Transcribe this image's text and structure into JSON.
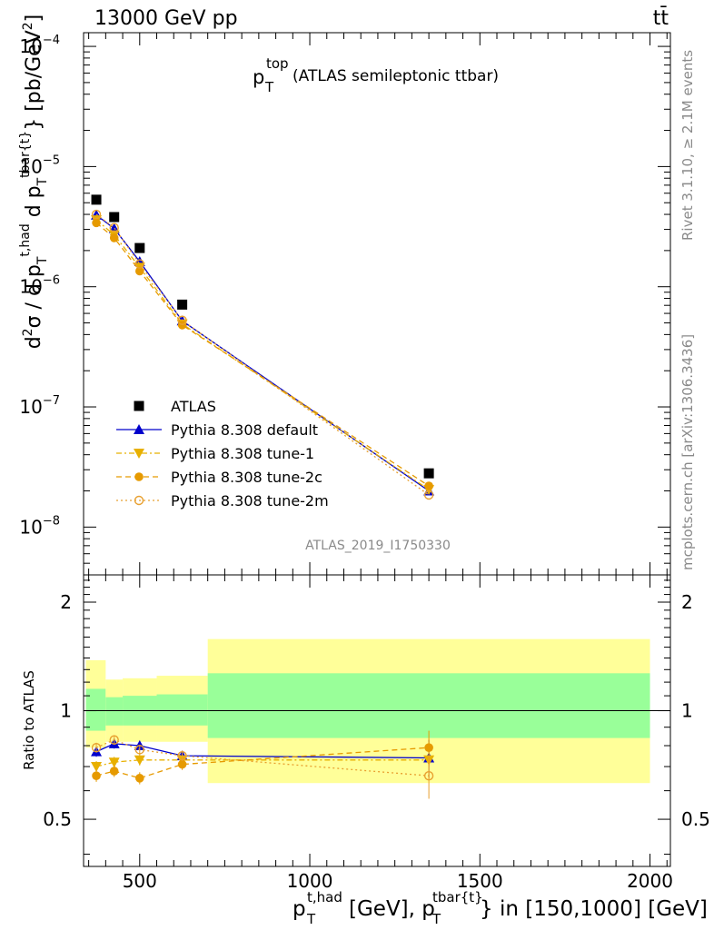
{
  "header": {
    "energy_label": "13000 GeV pp",
    "process_label": "tt̄"
  },
  "main_panel": {
    "title_prefix": "p",
    "title_sup": "top",
    "title_sub": "T",
    "title_rest": "(ATLAS semileptonic ttbar)",
    "ylabel": "d²σ / d p_T^{t,had} d p_T^{tbar{t}} [pb/GeV²]",
    "watermark": "ATLAS_2019_I1750330",
    "yticks": [
      {
        "base": "10",
        "exp": "−4"
      },
      {
        "base": "10",
        "exp": "−5"
      },
      {
        "base": "10",
        "exp": "−6"
      },
      {
        "base": "10",
        "exp": "−7"
      },
      {
        "base": "10",
        "exp": "−8"
      }
    ]
  },
  "ratio_panel": {
    "ylabel": "Ratio to ATLAS",
    "yticks": [
      "0.5",
      "1",
      "2"
    ]
  },
  "xaxis": {
    "ticks": [
      "500",
      "1000",
      "1500",
      "2000"
    ],
    "label": "p_T^{t,had} [GeV], p_T^{tbar{t}} in [150,1000] [GeV]"
  },
  "side_labels": {
    "rivet": "Rivet 3.1.10, ≥ 2.1M events",
    "mcplots": "mcplots.cern.ch [arXiv:1306.3436]"
  },
  "chart_data": {
    "type": "scatter",
    "x_range": [
      335,
      2060
    ],
    "y_range_main": [
      4e-09,
      0.00013
    ],
    "y_scale_main": "log",
    "y_range_ratio": [
      0.37,
      2.38
    ],
    "y_scale_ratio": "log",
    "legend_placement": "bottom-left",
    "x": [
      372.5,
      425,
      500,
      625,
      1350
    ],
    "series": [
      {
        "name": "ATLAS",
        "color": "#000000",
        "marker": "square",
        "style": "none",
        "values": [
          5.3e-06,
          3.8e-06,
          2.1e-06,
          7.1e-07,
          2.8e-08
        ],
        "ratio": [
          1,
          1,
          1,
          1,
          1
        ]
      },
      {
        "name": "Pythia 8.308 default",
        "color": "#0000cc",
        "marker": "triangle-up",
        "style": "solid",
        "values": [
          3.95e-06,
          3.05e-06,
          1.62e-06,
          5.2e-07,
          2e-08
        ],
        "ratio": [
          0.77,
          0.81,
          0.8,
          0.75,
          0.74
        ]
      },
      {
        "name": "Pythia 8.308 tune-1",
        "color": "#e8b000",
        "marker": "triangle-down",
        "style": "dashdot",
        "values": [
          3.6e-06,
          2.7e-06,
          1.45e-06,
          4.9e-07,
          2.05e-08
        ],
        "ratio": [
          0.7,
          0.72,
          0.73,
          0.73,
          0.73
        ]
      },
      {
        "name": "Pythia 8.308 tune-2c",
        "color": "#e69a00",
        "marker": "circle",
        "style": "dashed",
        "values": [
          3.4e-06,
          2.55e-06,
          1.35e-06,
          4.8e-07,
          2.2e-08
        ],
        "ratio": [
          0.66,
          0.68,
          0.65,
          0.71,
          0.79
        ]
      },
      {
        "name": "Pythia 8.308 tune-2m",
        "color": "#e8a030",
        "marker": "open-circle",
        "style": "dotted",
        "values": [
          4e-06,
          3.1e-06,
          1.55e-06,
          5.25e-07,
          1.85e-08
        ],
        "ratio": [
          0.79,
          0.83,
          0.78,
          0.75,
          0.66
        ]
      }
    ],
    "ratio_bands": {
      "bins": [
        [
          342,
          400
        ],
        [
          400,
          450
        ],
        [
          450,
          550
        ],
        [
          550,
          700
        ],
        [
          700,
          2000
        ]
      ],
      "green": [
        [
          0.88,
          1.15
        ],
        [
          0.91,
          1.09
        ],
        [
          0.91,
          1.1
        ],
        [
          0.91,
          1.11
        ],
        [
          0.84,
          1.27
        ]
      ],
      "yellow": [
        [
          0.79,
          1.38
        ],
        [
          0.82,
          1.22
        ],
        [
          0.82,
          1.23
        ],
        [
          0.82,
          1.25
        ],
        [
          0.63,
          1.58
        ]
      ]
    }
  }
}
